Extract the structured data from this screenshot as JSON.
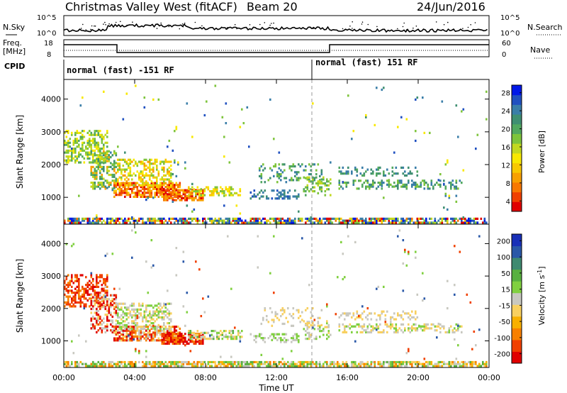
{
  "header": {
    "title": "Christmas Valley West (fitACF)",
    "beam": "Beam 20",
    "date": "24/Jun/2016"
  },
  "panels": {
    "nsky": {
      "label": "N.Sky",
      "right_label": "N.Search",
      "y_ticks": [
        "10^5",
        "10^0"
      ],
      "right_ticks": [
        "10^5",
        "10^0"
      ]
    },
    "freq": {
      "label_line1": "Freq.",
      "label_line2": "[MHz]",
      "y_ticks": [
        "18",
        "8"
      ],
      "right_label": "Nave",
      "right_ticks": [
        "60",
        "0"
      ]
    },
    "cpid": {
      "label": "CPID",
      "segments": [
        {
          "text": "normal (fast) -151 RF",
          "start_h": 0,
          "end_h": 14
        },
        {
          "text": "normal (fast) 151 RF",
          "start_h": 14,
          "end_h": 24
        }
      ]
    }
  },
  "chart_data": [
    {
      "type": "heatmap",
      "name": "power",
      "ylabel": "Slant Range [km]",
      "y_ticks": [
        "4000",
        "3000",
        "2000",
        "1000"
      ],
      "ylim": [
        180,
        4600
      ],
      "colorbar": {
        "label": "Power [dB]",
        "ticks": [
          "28",
          "24",
          "20",
          "16",
          "12",
          "8",
          "4"
        ],
        "range": [
          0,
          30
        ],
        "colors": [
          "#0018e8",
          "#2050c0",
          "#3a7ea8",
          "#3f8f72",
          "#52a860",
          "#7ec43c",
          "#c2d820",
          "#f8e800",
          "#f8c800",
          "#f8a000",
          "#f87800",
          "#f04000",
          "#e00000"
        ]
      }
    },
    {
      "type": "heatmap",
      "name": "velocity",
      "ylabel": "Slant Range [km]",
      "y_ticks": [
        "4000",
        "3000",
        "2000",
        "1000"
      ],
      "ylim": [
        180,
        4600
      ],
      "colorbar": {
        "label": "Velocity [m s^-1]",
        "ticks": [
          "200",
          "100",
          "50",
          "15",
          "-15",
          "-50",
          "-100",
          "-200"
        ],
        "colors": [
          "#1830b8",
          "#2a58a8",
          "#3f8a70",
          "#58b040",
          "#80d040",
          "#c8c8c0",
          "#f8d060",
          "#f8b000",
          "#f88000",
          "#f04000",
          "#e00000"
        ]
      }
    }
  ],
  "x_axis": {
    "label": "Time UT",
    "ticks": [
      "00:00",
      "04:00",
      "08:00",
      "12:00",
      "16:00",
      "20:00",
      "00:00"
    ],
    "range_h": [
      0,
      24
    ]
  }
}
